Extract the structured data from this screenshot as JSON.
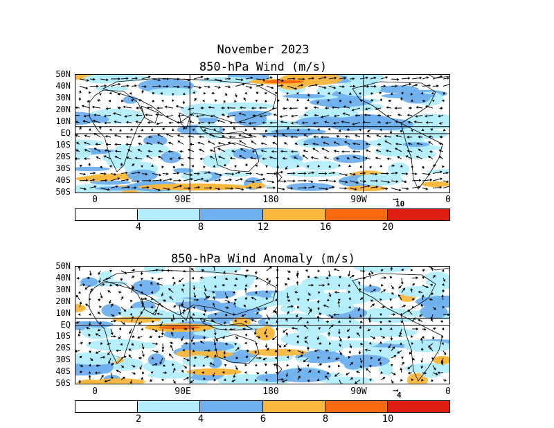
{
  "figure": {
    "title": "November 2023",
    "panel1_title": "850-hPa Wind (m/s)",
    "panel2_title": "850-hPa Wind Anomaly (m/s)"
  },
  "lat_labels": [
    "50N",
    "40N",
    "30N",
    "20N",
    "10N",
    "EQ",
    "10S",
    "20S",
    "30S",
    "40S",
    "50S"
  ],
  "lon_labels": [
    "0",
    "90E",
    "180",
    "90W",
    "0"
  ],
  "panel1": {
    "ref_vector_label": "10",
    "colorbar_labels": [
      "4",
      "8",
      "12",
      "16",
      "20"
    ],
    "colors": [
      "#ffffff",
      "#b4eefc",
      "#6fb0ee",
      "#fbb83e",
      "#f76a10",
      "#dc1d10"
    ]
  },
  "panel2": {
    "ref_vector_label": "4",
    "colorbar_labels": [
      "2",
      "4",
      "6",
      "8",
      "10"
    ],
    "colors": [
      "#ffffff",
      "#b4eefc",
      "#6fb0ee",
      "#fbb83e",
      "#f76a10",
      "#dc1d10"
    ]
  },
  "colors": {
    "land_outline": "#000000",
    "arrow": "#000000",
    "grid": "#000000"
  }
}
